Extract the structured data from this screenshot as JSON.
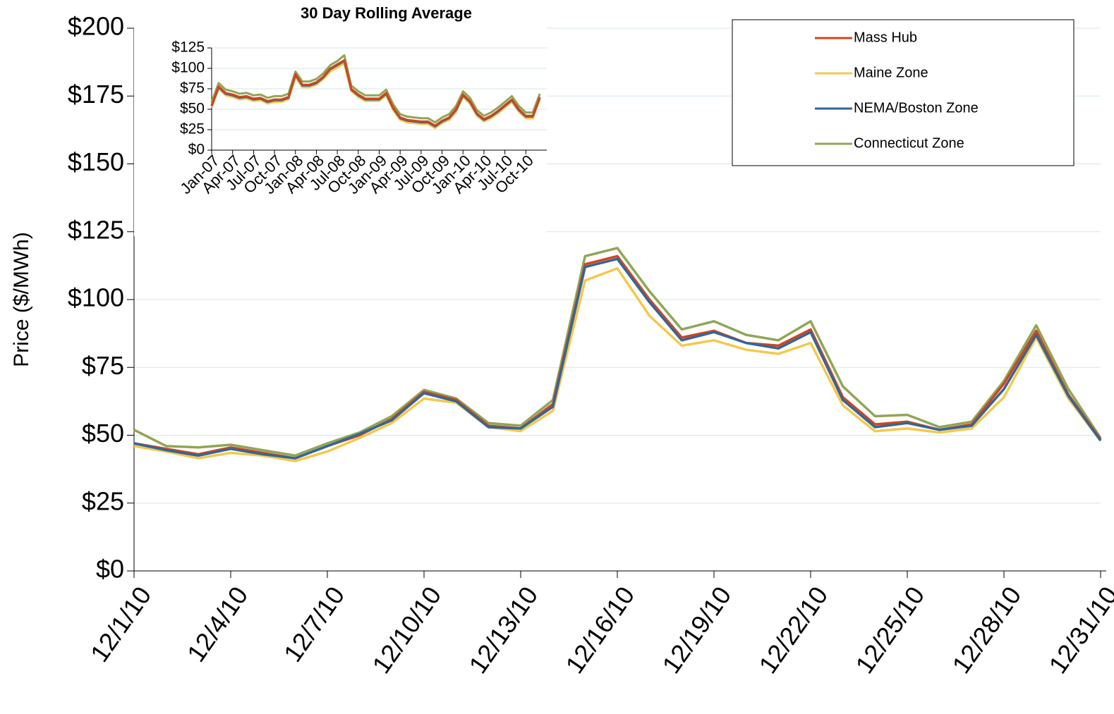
{
  "chart_data": [
    {
      "type": "line",
      "y_label": "Price ($/MWh)",
      "categories": [
        "12/1/10",
        null,
        null,
        "12/4/10",
        null,
        null,
        "12/7/10",
        null,
        null,
        "12/10/10",
        null,
        null,
        "12/13/10",
        null,
        null,
        "12/16/10",
        null,
        null,
        "12/19/10",
        null,
        null,
        "12/22/10",
        null,
        null,
        "12/25/10",
        null,
        null,
        "12/28/10",
        null,
        null,
        "12/31/10"
      ],
      "ylim": [
        0,
        200
      ],
      "yticks": [
        {
          "value": 0,
          "label": "$0"
        },
        {
          "value": 25,
          "label": "$25"
        },
        {
          "value": 50,
          "label": "$50"
        },
        {
          "value": 75,
          "label": "$75"
        },
        {
          "value": 100,
          "label": "$100"
        },
        {
          "value": 125,
          "label": "$125"
        },
        {
          "value": 150,
          "label": "$150"
        },
        {
          "value": 175,
          "label": "$175"
        },
        {
          "value": 200,
          "label": "$200"
        }
      ],
      "grid": true,
      "legend": "top-right",
      "series": [
        {
          "name": "Connecticut Zone",
          "color": "#8fa655",
          "values": [
            52,
            46,
            45.5,
            46.5,
            44.5,
            42.5,
            47,
            51,
            57,
            66.7,
            63.5,
            54.5,
            53.5,
            63,
            116,
            119,
            103,
            89,
            92,
            87,
            85,
            92,
            68,
            57,
            57.5,
            53,
            55,
            70,
            90.5,
            67,
            49
          ]
        },
        {
          "name": "Maine Zone",
          "color": "#f5c84c",
          "values": [
            46,
            44,
            41.5,
            43.5,
            42.5,
            40.5,
            44,
            49,
            54.5,
            63.5,
            62,
            53,
            51.5,
            59,
            107,
            111.5,
            94,
            83,
            85,
            81.5,
            80,
            84,
            61,
            51.5,
            52.5,
            51,
            52.5,
            64,
            86,
            63.5,
            48
          ]
        },
        {
          "name": "Mass Hub",
          "color": "#d2451e",
          "values": [
            47,
            45,
            43,
            45.5,
            43.5,
            41.5,
            46,
            50,
            56,
            66,
            63,
            53.5,
            52.5,
            61.5,
            113,
            116,
            100,
            86,
            88.5,
            84,
            83,
            89,
            64,
            54,
            55,
            52,
            54,
            69,
            88.5,
            65,
            48.5
          ]
        },
        {
          "name": "NEMA/Boston Zone",
          "color": "#336699",
          "values": [
            47,
            44.5,
            42.5,
            45,
            43,
            41.5,
            46,
            50.5,
            55.5,
            65.5,
            62.5,
            53,
            52.5,
            60.5,
            112,
            115,
            99,
            85,
            88,
            84,
            82,
            88,
            63,
            53,
            54.5,
            52,
            53.5,
            67,
            87,
            64.5,
            48
          ]
        }
      ]
    },
    {
      "type": "line",
      "title": "30 Day Rolling Average",
      "categories": [
        "Jan-07",
        null,
        null,
        "Apr-07",
        null,
        null,
        "Jul-07",
        null,
        null,
        "Oct-07",
        null,
        null,
        "Jan-08",
        null,
        null,
        "Apr-08",
        null,
        null,
        "Jul-08",
        null,
        null,
        "Oct-08",
        null,
        null,
        "Jan-09",
        null,
        null,
        "Apr-09",
        null,
        null,
        "Jul-09",
        null,
        null,
        "Oct-09",
        null,
        null,
        "Jan-10",
        null,
        null,
        "Apr-10",
        null,
        null,
        "Jul-10",
        null,
        null,
        "Oct-10",
        null,
        null
      ],
      "ylim": [
        0,
        125
      ],
      "yticks": [
        {
          "value": 0,
          "label": "$0"
        },
        {
          "value": 25,
          "label": "$25"
        },
        {
          "value": 50,
          "label": "$50"
        },
        {
          "value": 75,
          "label": "$75"
        },
        {
          "value": 100,
          "label": "$100"
        },
        {
          "value": 125,
          "label": "$125"
        }
      ],
      "grid": true,
      "series": [
        {
          "name": "Connecticut Zone",
          "color": "#8fa655",
          "values": [
            59,
            82,
            74,
            72,
            69,
            70,
            67,
            68,
            64,
            66,
            66,
            69,
            96,
            84,
            84,
            87,
            94,
            104,
            109,
            116,
            79,
            72,
            67,
            67,
            67,
            74,
            56,
            44,
            41,
            40,
            39,
            39,
            34,
            40,
            44,
            54,
            72,
            64,
            49,
            42,
            46,
            52,
            59,
            66,
            54,
            46,
            46,
            69
          ]
        },
        {
          "name": "Maine Zone",
          "color": "#f5c84c",
          "values": [
            52,
            75,
            67,
            65,
            62,
            63,
            60,
            61,
            57,
            59,
            59,
            62,
            89,
            77,
            77,
            80,
            87,
            96,
            101,
            106,
            72,
            65,
            60,
            60,
            60,
            67,
            49,
            37,
            34,
            33,
            32,
            32,
            27,
            33,
            37,
            47,
            65,
            57,
            42,
            35,
            39,
            45,
            52,
            59,
            47,
            39,
            39,
            62
          ]
        },
        {
          "name": "NEMA/Boston Zone",
          "color": "#336699",
          "values": [
            54,
            77,
            69,
            67,
            64,
            65,
            62,
            63,
            59,
            61,
            61,
            64,
            92,
            79,
            79,
            82,
            89,
            99,
            104,
            109,
            74,
            67,
            62,
            62,
            62,
            69,
            51,
            39,
            36,
            35,
            34,
            34,
            29,
            35,
            39,
            49,
            67,
            59,
            44,
            37,
            41,
            47,
            54,
            61,
            49,
            41,
            41,
            64
          ]
        },
        {
          "name": "Mass Hub",
          "color": "#d2451e",
          "values": [
            55,
            78,
            70,
            68,
            65,
            66,
            63,
            64,
            60,
            62,
            62,
            65,
            93,
            80,
            80,
            83,
            90,
            100,
            105,
            110,
            75,
            68,
            63,
            63,
            63,
            70,
            52,
            40,
            37,
            36,
            35,
            35,
            30,
            36,
            40,
            50,
            68,
            60,
            45,
            38,
            42,
            48,
            55,
            62,
            50,
            42,
            42,
            65
          ]
        }
      ]
    }
  ]
}
